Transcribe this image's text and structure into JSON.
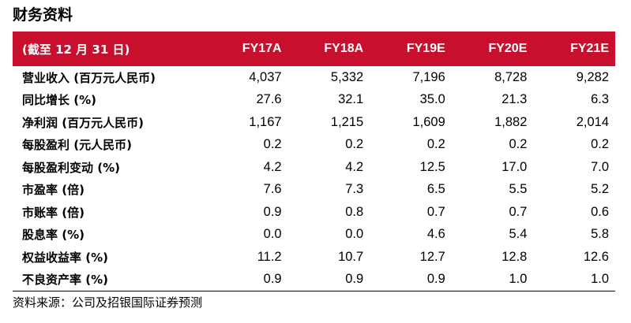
{
  "title": "财务资料",
  "table": {
    "header_label": "(截至 12 月 31 日)",
    "columns": [
      "FY17A",
      "FY18A",
      "FY19E",
      "FY20E",
      "FY21E"
    ],
    "rows": [
      {
        "label": "营业收入 (百万元人民币)",
        "values": [
          "4,037",
          "5,332",
          "7,196",
          "8,728",
          "9,282"
        ]
      },
      {
        "label": "同比增长 (%)",
        "values": [
          "27.6",
          "32.1",
          "35.0",
          "21.3",
          "6.3"
        ]
      },
      {
        "label": "净利润 (百万元人民币)",
        "values": [
          "1,167",
          "1,215",
          "1,609",
          "1,882",
          "2,014"
        ]
      },
      {
        "label": "每股盈利 (元人民币)",
        "values": [
          "0.2",
          "0.2",
          "0.2",
          "0.2",
          "0.2"
        ]
      },
      {
        "label": "每股盈利变动 (%)",
        "values": [
          "4.2",
          "4.2",
          "12.5",
          "17.0",
          "7.0"
        ]
      },
      {
        "label": "市盈率 (倍)",
        "values": [
          "7.6",
          "7.3",
          "6.5",
          "5.5",
          "5.2"
        ]
      },
      {
        "label": "市账率 (倍)",
        "values": [
          "0.9",
          "0.8",
          "0.7",
          "0.7",
          "0.6"
        ]
      },
      {
        "label": "股息率 (%)",
        "values": [
          "0.0",
          "0.0",
          "4.6",
          "5.4",
          "5.8"
        ]
      },
      {
        "label": "权益收益率 (%)",
        "values": [
          "11.2",
          "10.7",
          "12.7",
          "12.8",
          "12.6"
        ]
      },
      {
        "label": "不良资产率 (%)",
        "values": [
          "0.9",
          "0.9",
          "0.9",
          "1.0",
          "1.0"
        ]
      }
    ]
  },
  "source_note": "资料来源：公司及招银国际证券预测",
  "colors": {
    "header_background": "#c8102e",
    "header_text": "#ffffff"
  }
}
